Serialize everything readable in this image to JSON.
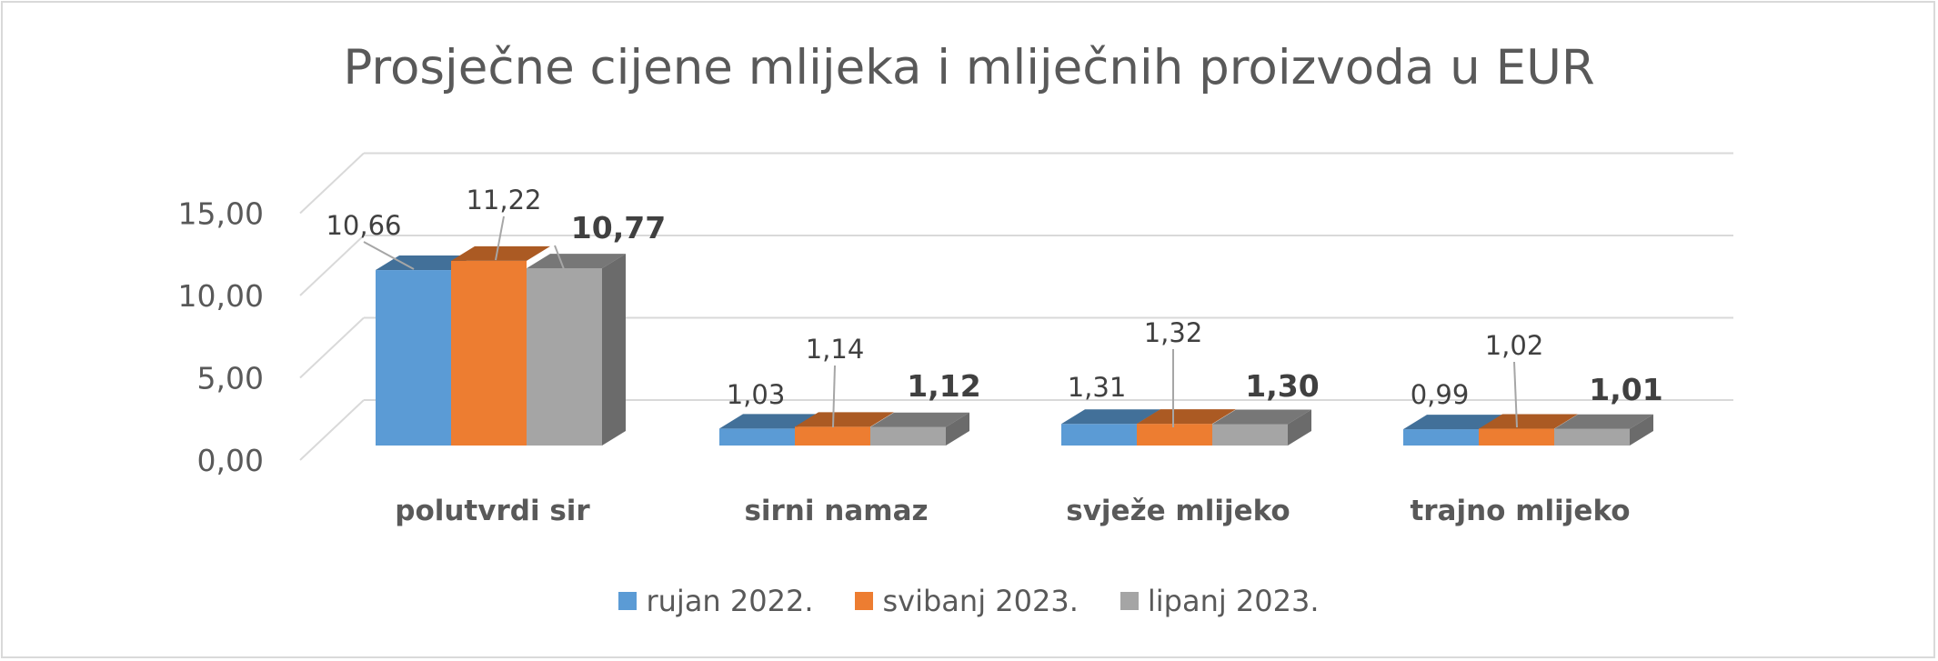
{
  "chart_data": {
    "type": "bar",
    "title": "Prosječne cijene mlijeka i mliječnih proizvoda u EUR",
    "categories": [
      "polutvrdi sir",
      "sirni namaz",
      "svježe mlijeko",
      "trajno mlijeko"
    ],
    "series": [
      {
        "name": "rujan 2022.",
        "color": "#5b9bd5",
        "values": [
          10.66,
          1.03,
          1.31,
          0.99
        ],
        "labels": [
          "10,66",
          "1,03",
          "1,31",
          "0,99"
        ]
      },
      {
        "name": "svibanj 2023.",
        "color": "#ed7d31",
        "values": [
          11.22,
          1.14,
          1.32,
          1.02
        ],
        "labels": [
          "11,22",
          "1,14",
          "1,32",
          "1,02"
        ]
      },
      {
        "name": "lipanj 2023.",
        "color": "#a5a5a5",
        "values": [
          10.77,
          1.12,
          1.3,
          1.01
        ],
        "labels": [
          "10,77",
          "1,12",
          "1,30",
          "1,01"
        ]
      }
    ],
    "yticks": [
      "0,00",
      "5,00",
      "10,00",
      "15,00"
    ],
    "ylim": [
      0,
      15
    ],
    "grid": true,
    "legend_position": "bottom",
    "style": "3d-clustered-column"
  }
}
